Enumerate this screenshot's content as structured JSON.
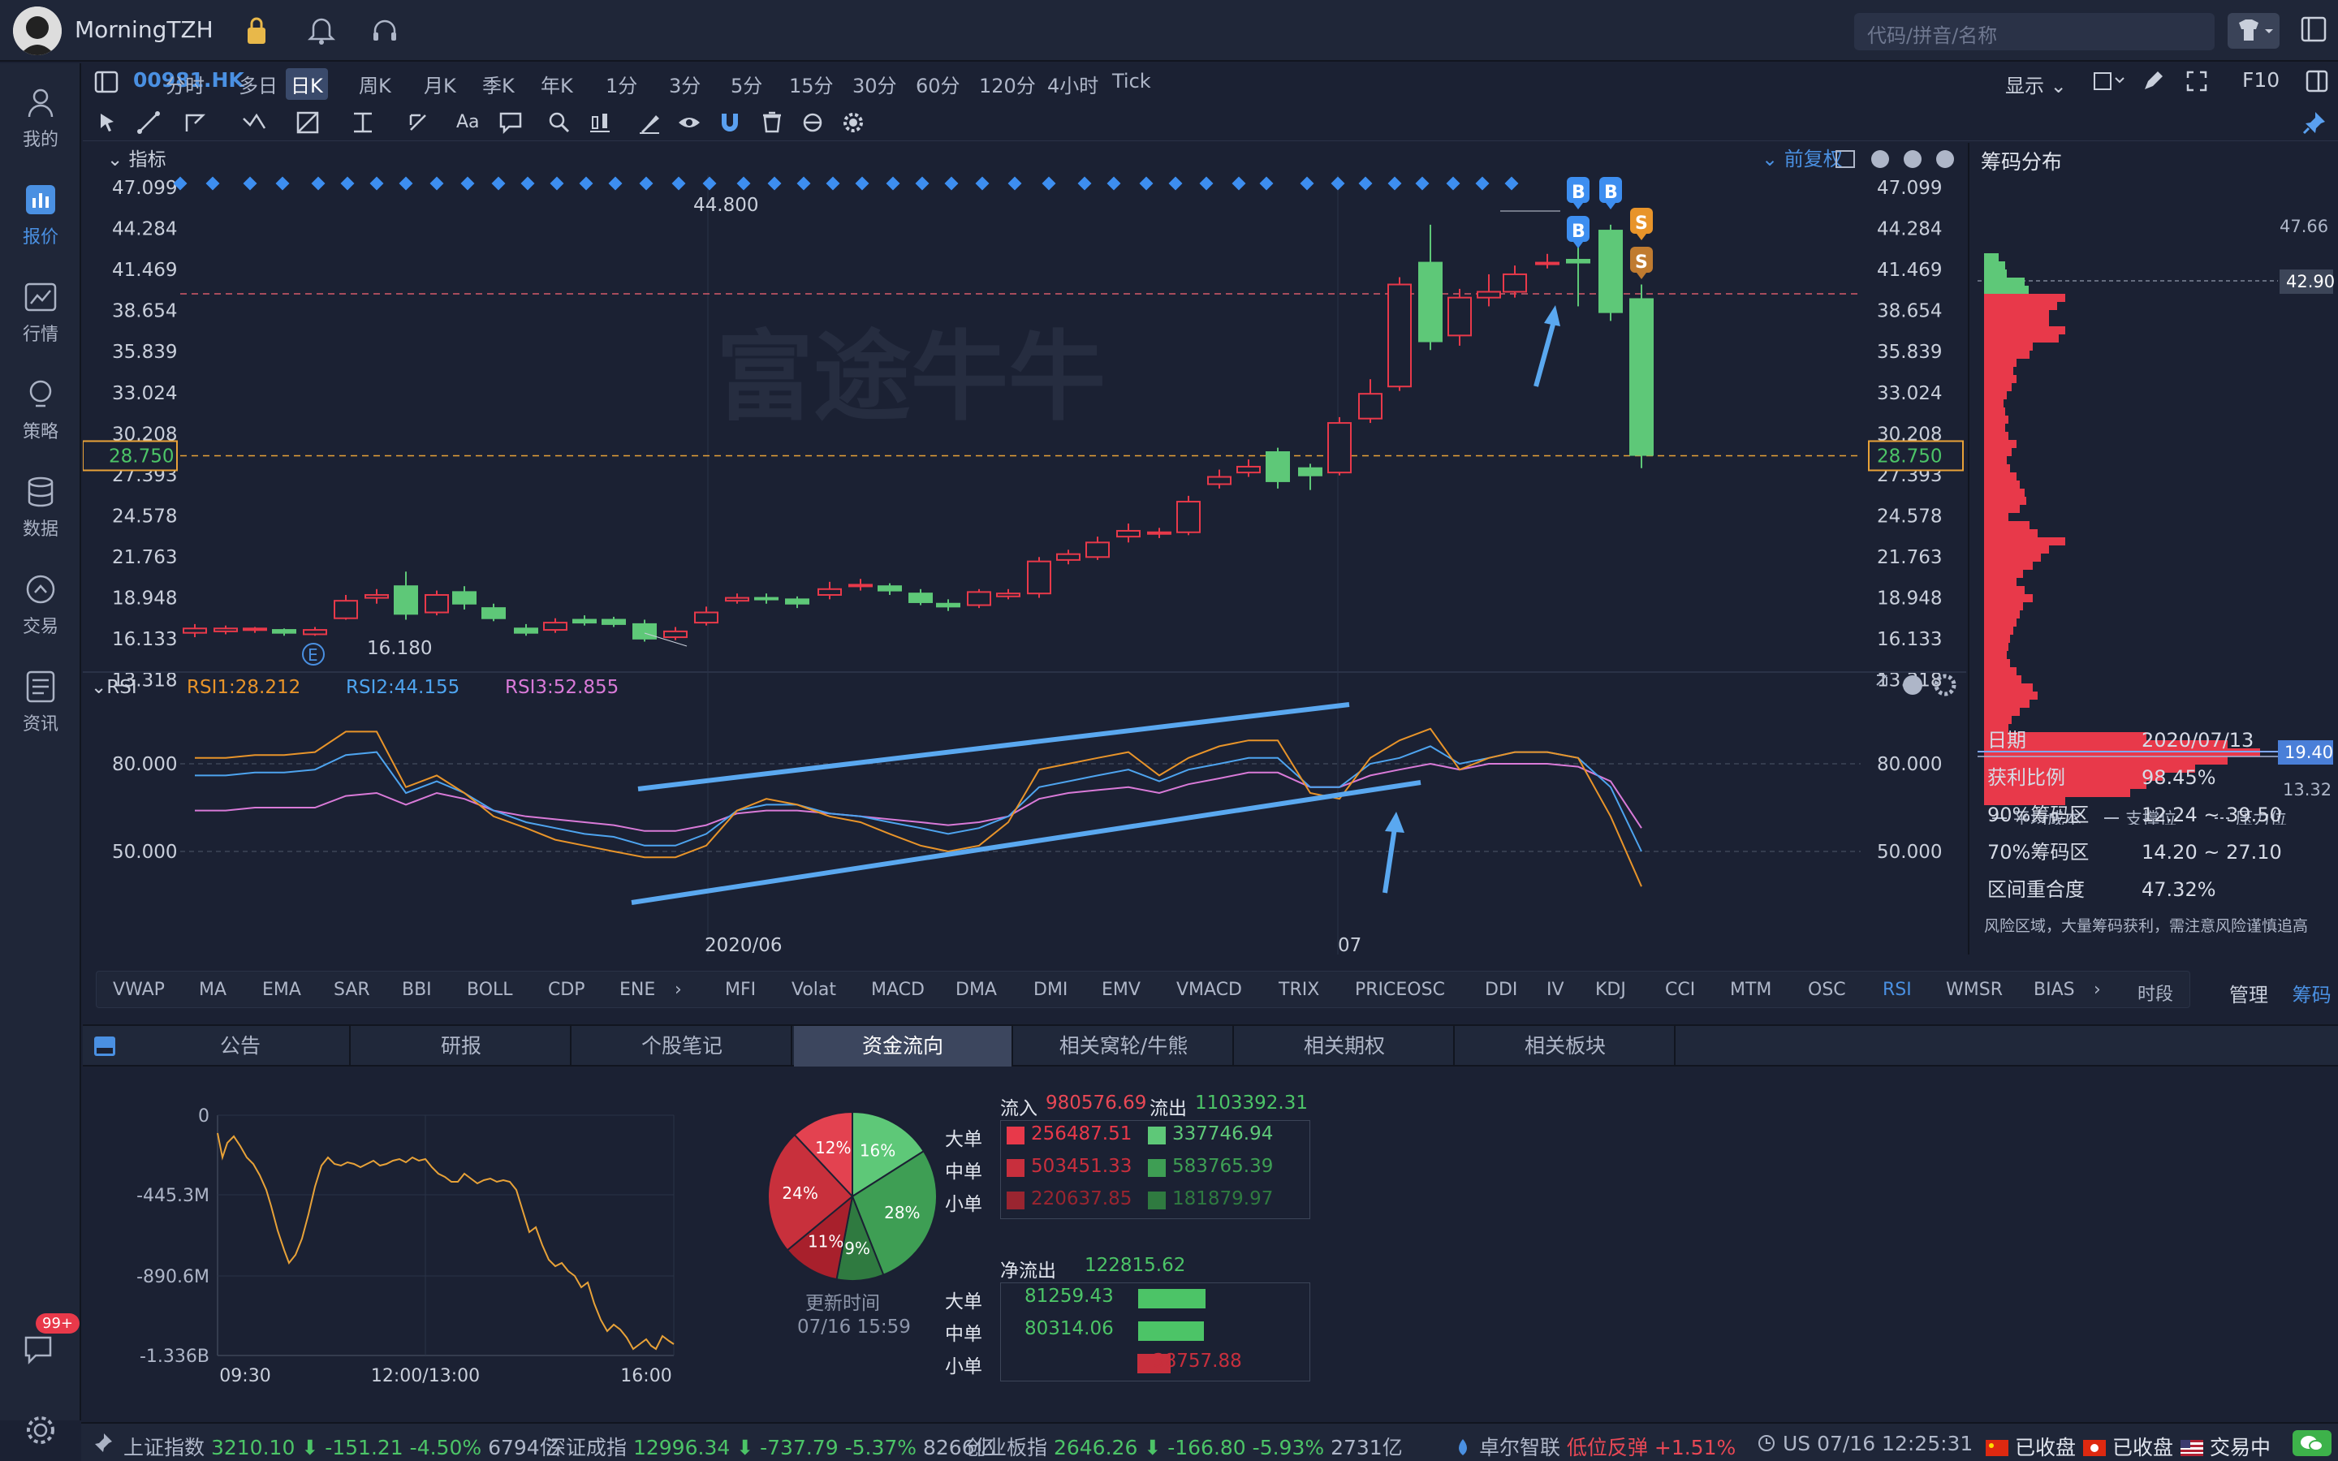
{
  "app": {
    "username": "MorningTZH",
    "search_placeholder": "代码/拼音/名称"
  },
  "nav": [
    {
      "label": "我的",
      "icon": "user-icon"
    },
    {
      "label": "报价",
      "icon": "quote-icon"
    },
    {
      "label": "行情",
      "icon": "market-icon"
    },
    {
      "label": "策略",
      "icon": "bulb-icon"
    },
    {
      "label": "数据",
      "icon": "database-icon"
    },
    {
      "label": "交易",
      "icon": "trade-icon"
    },
    {
      "label": "资讯",
      "icon": "news-icon"
    }
  ],
  "chat_badge": "99+",
  "ticker": "00981.HK",
  "periods": [
    "分时",
    "多日",
    "日K",
    "周K",
    "月K",
    "季K",
    "年K",
    "1分",
    "3分",
    "5分",
    "15分",
    "30分",
    "60分",
    "120分",
    "4小时",
    "Tick"
  ],
  "active_period": "日K",
  "right_toolbar": {
    "display": "显示",
    "f10": "F10"
  },
  "panel": {
    "indicator_label": "指标",
    "adjust": "前复权",
    "watermark": "富途牛牛"
  },
  "price_axis": [
    "47.099",
    "44.284",
    "41.469",
    "38.654",
    "35.839",
    "33.024",
    "30.208",
    "27.393",
    "24.578",
    "21.763",
    "18.948",
    "16.133",
    "13.318"
  ],
  "current_price": "28.750",
  "annotations": {
    "high": "44.800",
    "low": "16.180",
    "e_marker": "E",
    "buy": "B",
    "sell": "S"
  },
  "rsi": {
    "label": "RSI",
    "rsi1": "RSI1:28.212",
    "rsi2": "RSI2:44.155",
    "rsi3": "RSI3:52.855",
    "axis": [
      "80.000",
      "50.000"
    ],
    "dates": [
      "2020/06",
      "07"
    ]
  },
  "chip": {
    "title": "筹码分布",
    "top_price": "47.66",
    "avg_cost_tag": "42.90",
    "support_tag": "19.40",
    "bottom_price": "13.32",
    "legend": [
      "平均成本",
      "支撑位",
      "压力位"
    ],
    "rows": [
      {
        "k": "日期",
        "v": "2020/07/13"
      },
      {
        "k": "获利比例",
        "v": "98.45%"
      },
      {
        "k": "90%筹码区",
        "v": "12.24 ~ 39.50"
      },
      {
        "k": "70%筹码区",
        "v": "14.20 ~ 27.10"
      },
      {
        "k": "区间重合度",
        "v": "47.32%"
      }
    ],
    "note": "风险区域，大量筹码获利，需注意风险谨慎追高"
  },
  "indicators_main": [
    "VWAP",
    "MA",
    "EMA",
    "SAR",
    "BBI",
    "BOLL",
    "CDP",
    "ENE"
  ],
  "indicators_sub": [
    "MFI",
    "Volat",
    "MACD",
    "DMA",
    "DMI",
    "EMV",
    "VMACD",
    "TRIX",
    "PRICEOSC",
    "DDI",
    "IV",
    "KDJ",
    "CCI",
    "MTM",
    "OSC",
    "RSI",
    "WMSR",
    "BIAS"
  ],
  "indicator_extra": {
    "shares": "时段",
    "manage": "管理",
    "chip": "筹码"
  },
  "bottom_tabs": [
    "公告",
    "研报",
    "个股笔记",
    "资金流向",
    "相关窝轮/牛熊",
    "相关期权",
    "相关板块"
  ],
  "active_bottom_tab": "资金流向",
  "flow_chart": {
    "y_labels": [
      "0",
      "-445.3M",
      "-890.6M",
      "-1.336B"
    ],
    "x_labels": [
      "09:30",
      "12:00/13:00",
      "16:00"
    ]
  },
  "pie": {
    "slices": [
      {
        "label": "16%",
        "value": 16,
        "color": "#5ec878"
      },
      {
        "label": "28%",
        "value": 28,
        "color": "#3e9e54"
      },
      {
        "label": "9%",
        "value": 9,
        "color": "#2f7a40"
      },
      {
        "label": "11%",
        "value": 11,
        "color": "#a8202c"
      },
      {
        "label": "24%",
        "value": 24,
        "color": "#c8303c"
      },
      {
        "label": "12%",
        "value": 12,
        "color": "#e34250"
      }
    ],
    "update_label": "更新时间",
    "update_time": "07/16 15:59"
  },
  "flow": {
    "in_label": "流入",
    "in_value": "980576.69",
    "out_label": "流出",
    "out_value": "1103392.31",
    "rows": [
      {
        "label": "大单",
        "in": "256487.51",
        "out": "337746.94"
      },
      {
        "label": "中单",
        "in": "503451.33",
        "out": "583765.39"
      },
      {
        "label": "小单",
        "in": "220637.85",
        "out": "181879.97"
      }
    ],
    "net_label": "净流出",
    "net_value": "122815.62",
    "net_rows": [
      {
        "label": "大单",
        "value": "81259.43",
        "kind": "out",
        "ratio": 0.55
      },
      {
        "label": "中单",
        "value": "80314.06",
        "kind": "out",
        "ratio": 0.54
      },
      {
        "label": "小单",
        "value": "38757.88",
        "kind": "in",
        "ratio": 0.27
      }
    ]
  },
  "status": {
    "idx1": {
      "name": "上证指数",
      "price": "3210.10",
      "chg": "-151.21",
      "pct": "-4.50%",
      "amt": "6794亿"
    },
    "idx2": {
      "name": "深证成指",
      "price": "12996.34",
      "chg": "-737.79",
      "pct": "-5.37%",
      "amt": "8266亿"
    },
    "idx3": {
      "name": "创业板指",
      "price": "2646.26",
      "chg": "-166.80",
      "pct": "-5.93%",
      "amt": "2731亿"
    },
    "news": {
      "stock": "卓尔智联",
      "text": "低位反弹 +1.51%"
    },
    "clock": "US 07/16 12:25:31",
    "mkt_cn": "已收盘",
    "mkt_hk": "已收盘",
    "mkt_us": "交易中"
  }
}
